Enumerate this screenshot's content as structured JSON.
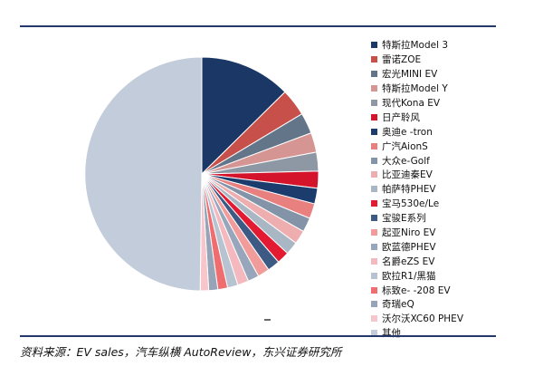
{
  "source_note": "资料来源：EV sales，汽车纵横 AutoReview，东兴证券研究所",
  "chart_data": {
    "type": "pie",
    "title": "",
    "start_angle_deg": 0,
    "direction": "clockwise",
    "series": [
      {
        "name": "特斯拉Model 3",
        "value": 14.0,
        "color": "#1b3766"
      },
      {
        "name": "雷诺ZOE",
        "value": 4.2,
        "color": "#c8504a"
      },
      {
        "name": "宏光MINI EV",
        "value": 3.2,
        "color": "#637589"
      },
      {
        "name": "特斯拉Model Y",
        "value": 3.0,
        "color": "#d49593"
      },
      {
        "name": "现代Kona EV",
        "value": 2.9,
        "color": "#8e98a5"
      },
      {
        "name": "日产聆风",
        "value": 2.6,
        "color": "#d3142a"
      },
      {
        "name": "奥迪e -tron",
        "value": 2.4,
        "color": "#1c3c6e"
      },
      {
        "name": "广汽AionS",
        "value": 2.3,
        "color": "#e8807f"
      },
      {
        "name": "大众e-Golf",
        "value": 2.2,
        "color": "#8494a8"
      },
      {
        "name": "比亚迪秦EV",
        "value": 2.1,
        "color": "#eeaeb0"
      },
      {
        "name": "帕萨特PHEV",
        "value": 2.0,
        "color": "#a9b6c4"
      },
      {
        "name": "宝马530e/Le",
        "value": 1.9,
        "color": "#e21b33"
      },
      {
        "name": "宝骏E系列",
        "value": 1.9,
        "color": "#3d5a85"
      },
      {
        "name": "起亚Niro EV",
        "value": 1.8,
        "color": "#f29b9b"
      },
      {
        "name": "欧蓝德PHEV",
        "value": 1.7,
        "color": "#97a6ba"
      },
      {
        "name": "名爵eZS EV",
        "value": 1.7,
        "color": "#f3b9be"
      },
      {
        "name": "欧拉R1/黑猫",
        "value": 1.6,
        "color": "#b7c3d1"
      },
      {
        "name": "标致e- -208 EV",
        "value": 1.5,
        "color": "#f06d6f"
      },
      {
        "name": "奇瑞eQ",
        "value": 1.4,
        "color": "#97a3b6"
      },
      {
        "name": "沃尔沃XC60 PHEV",
        "value": 1.3,
        "color": "#f6c6cb"
      },
      {
        "name": "其他",
        "value": 55.2,
        "color": "#c2ccda"
      }
    ]
  }
}
